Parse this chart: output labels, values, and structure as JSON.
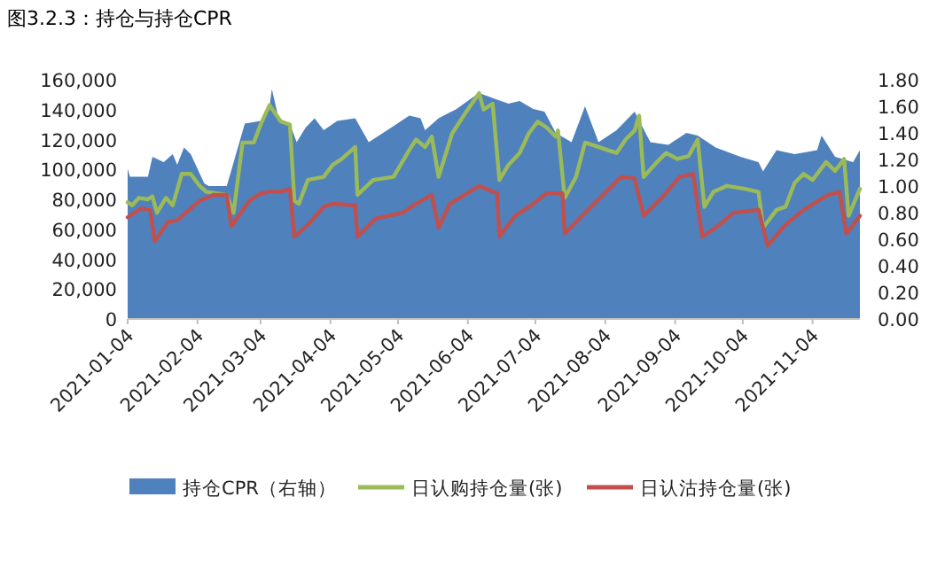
{
  "chart_data": {
    "type": "line",
    "title": "图3.2.3：持仓与持仓CPR",
    "xlim": [
      "2021-01-04",
      "2021-11-25"
    ],
    "xticks": [
      "2021-01-04",
      "2021-02-04",
      "2021-03-04",
      "2021-04-04",
      "2021-05-04",
      "2021-06-04",
      "2021-07-04",
      "2021-08-04",
      "2021-09-04",
      "2021-10-04",
      "2021-11-04"
    ],
    "ylim": [
      0,
      160000
    ],
    "yticks": [
      {
        "value": 0,
        "label": "0"
      },
      {
        "value": 20000,
        "label": "20,000"
      },
      {
        "value": 40000,
        "label": "40,000"
      },
      {
        "value": 60000,
        "label": "60,000"
      },
      {
        "value": 80000,
        "label": "80,000"
      },
      {
        "value": 100000,
        "label": "100,000"
      },
      {
        "value": 120000,
        "label": "120,000"
      },
      {
        "value": 140000,
        "label": "140,000"
      },
      {
        "value": 160000,
        "label": "160,000"
      }
    ],
    "y2lim": [
      0,
      1.8
    ],
    "y2ticks": [
      {
        "value": 0,
        "label": "0.00"
      },
      {
        "value": 0.2,
        "label": "0.20"
      },
      {
        "value": 0.4,
        "label": "0.40"
      },
      {
        "value": 0.6,
        "label": "0.60"
      },
      {
        "value": 0.8,
        "label": "0.80"
      },
      {
        "value": 1.0,
        "label": "1.00"
      },
      {
        "value": 1.2,
        "label": "1.20"
      },
      {
        "value": 1.4,
        "label": "1.40"
      },
      {
        "value": 1.6,
        "label": "1.60"
      },
      {
        "value": 1.8,
        "label": "1.80"
      }
    ],
    "legend": "bottom",
    "series": [
      {
        "name": "持仓CPR（右轴）",
        "type": "area",
        "axis": "y2",
        "color": "#4f81bd",
        "x": [
          "2021-01-04",
          "2021-01-05",
          "2021-01-13",
          "2021-01-15",
          "2021-01-20",
          "2021-01-24",
          "2021-01-26",
          "2021-01-29",
          "2021-02-01",
          "2021-02-07",
          "2021-02-09",
          "2021-02-17",
          "2021-02-25",
          "2021-03-04",
          "2021-03-08",
          "2021-03-09",
          "2021-03-12",
          "2021-03-17",
          "2021-03-20",
          "2021-03-24",
          "2021-03-28",
          "2021-04-01",
          "2021-04-07",
          "2021-04-15",
          "2021-04-21",
          "2021-05-01",
          "2021-05-09",
          "2021-05-14",
          "2021-05-16",
          "2021-05-22",
          "2021-05-30",
          "2021-06-08",
          "2021-06-09",
          "2021-06-17",
          "2021-06-22",
          "2021-06-27",
          "2021-07-03",
          "2021-07-08",
          "2021-07-13",
          "2021-07-20",
          "2021-07-26",
          "2021-08-01",
          "2021-08-09",
          "2021-08-17",
          "2021-08-24",
          "2021-09-01",
          "2021-09-09",
          "2021-09-14",
          "2021-09-22",
          "2021-10-03",
          "2021-10-11",
          "2021-10-13",
          "2021-10-19",
          "2021-10-27",
          "2021-11-06",
          "2021-11-08",
          "2021-11-14",
          "2021-11-22",
          "2021-11-25"
        ],
        "values": [
          1.13,
          1.07,
          1.07,
          1.22,
          1.18,
          1.24,
          1.16,
          1.29,
          1.24,
          1.02,
          1.0,
          1.0,
          1.47,
          1.49,
          1.6,
          1.73,
          1.51,
          1.47,
          1.33,
          1.44,
          1.51,
          1.42,
          1.49,
          1.51,
          1.33,
          1.44,
          1.53,
          1.51,
          1.42,
          1.51,
          1.58,
          1.69,
          1.7,
          1.65,
          1.62,
          1.64,
          1.58,
          1.56,
          1.4,
          1.33,
          1.6,
          1.33,
          1.42,
          1.56,
          1.33,
          1.31,
          1.4,
          1.38,
          1.29,
          1.22,
          1.18,
          1.11,
          1.27,
          1.24,
          1.27,
          1.38,
          1.22,
          1.18,
          1.27
        ]
      },
      {
        "name": "日认购持仓量(张)",
        "type": "line",
        "color": "#9bbb59",
        "x": [
          "2021-01-04",
          "2021-01-06",
          "2021-01-09",
          "2021-01-13",
          "2021-01-15",
          "2021-01-17",
          "2021-01-21",
          "2021-01-24",
          "2021-01-28",
          "2021-02-01",
          "2021-02-05",
          "2021-02-08",
          "2021-02-17",
          "2021-02-20",
          "2021-02-24",
          "2021-03-01",
          "2021-03-04",
          "2021-03-08",
          "2021-03-13",
          "2021-03-17",
          "2021-03-19",
          "2021-03-21",
          "2021-03-25",
          "2021-04-01",
          "2021-04-05",
          "2021-04-09",
          "2021-04-15",
          "2021-04-16",
          "2021-04-23",
          "2021-05-02",
          "2021-05-09",
          "2021-05-12",
          "2021-05-16",
          "2021-05-19",
          "2021-05-22",
          "2021-05-28",
          "2021-06-03",
          "2021-06-09",
          "2021-06-11",
          "2021-06-15",
          "2021-06-18",
          "2021-06-22",
          "2021-06-27",
          "2021-07-01",
          "2021-07-05",
          "2021-07-09",
          "2021-07-13",
          "2021-07-14",
          "2021-07-17",
          "2021-07-22",
          "2021-07-26",
          "2021-08-01",
          "2021-08-05",
          "2021-08-09",
          "2021-08-13",
          "2021-08-17",
          "2021-08-19",
          "2021-08-21",
          "2021-08-27",
          "2021-08-31",
          "2021-09-05",
          "2021-09-10",
          "2021-09-14",
          "2021-09-17",
          "2021-09-21",
          "2021-09-27",
          "2021-10-05",
          "2021-10-11",
          "2021-10-13",
          "2021-10-19",
          "2021-10-23",
          "2021-10-27",
          "2021-10-31",
          "2021-11-04",
          "2021-11-10",
          "2021-11-14",
          "2021-11-18",
          "2021-11-20",
          "2021-11-25"
        ],
        "values": [
          78000,
          76000,
          81000,
          80000,
          82000,
          71000,
          81000,
          76000,
          97000,
          97000,
          89000,
          85000,
          83000,
          71000,
          118000,
          118000,
          130000,
          143000,
          132000,
          130000,
          79000,
          77000,
          93000,
          95000,
          103000,
          107000,
          115000,
          83000,
          93000,
          95000,
          113000,
          120000,
          115000,
          122000,
          95000,
          124000,
          138000,
          151000,
          140000,
          144000,
          93000,
          103000,
          111000,
          124000,
          132000,
          128000,
          122000,
          126000,
          81000,
          95000,
          118000,
          115000,
          113000,
          111000,
          120000,
          126000,
          136000,
          95000,
          105000,
          111000,
          107000,
          109000,
          120000,
          75000,
          85000,
          89000,
          87000,
          85000,
          61000,
          73000,
          75000,
          91000,
          97000,
          93000,
          105000,
          99000,
          107000,
          69000,
          87000
        ]
      },
      {
        "name": "日认沽持仓量(张)",
        "type": "line",
        "color": "#c0504d",
        "x": [
          "2021-01-04",
          "2021-01-10",
          "2021-01-14",
          "2021-01-16",
          "2021-01-22",
          "2021-01-26",
          "2021-02-01",
          "2021-02-05",
          "2021-02-11",
          "2021-02-17",
          "2021-02-19",
          "2021-02-27",
          "2021-03-04",
          "2021-03-08",
          "2021-03-13",
          "2021-03-17",
          "2021-03-19",
          "2021-03-25",
          "2021-04-01",
          "2021-04-05",
          "2021-04-15",
          "2021-04-16",
          "2021-04-24",
          "2021-05-06",
          "2021-05-12",
          "2021-05-19",
          "2021-05-22",
          "2021-05-27",
          "2021-06-09",
          "2021-06-17",
          "2021-06-18",
          "2021-06-25",
          "2021-07-03",
          "2021-07-09",
          "2021-07-16",
          "2021-07-17",
          "2021-07-26",
          "2021-08-05",
          "2021-08-11",
          "2021-08-17",
          "2021-08-21",
          "2021-08-29",
          "2021-09-06",
          "2021-09-12",
          "2021-09-16",
          "2021-09-22",
          "2021-09-30",
          "2021-10-11",
          "2021-10-15",
          "2021-10-23",
          "2021-10-31",
          "2021-11-11",
          "2021-11-16",
          "2021-11-19",
          "2021-11-25"
        ],
        "values": [
          68000,
          74000,
          73000,
          52000,
          65000,
          66000,
          74000,
          79000,
          83000,
          83000,
          62000,
          79000,
          84000,
          85000,
          85000,
          87000,
          55000,
          63000,
          75000,
          77000,
          76000,
          55000,
          67000,
          71000,
          77000,
          83000,
          61000,
          77000,
          89000,
          84000,
          55000,
          69000,
          77000,
          84000,
          84000,
          57000,
          71000,
          86000,
          95000,
          94000,
          69000,
          81000,
          95000,
          97000,
          55000,
          61000,
          71000,
          73000,
          49000,
          63000,
          73000,
          83000,
          85000,
          57000,
          69000
        ]
      }
    ]
  }
}
